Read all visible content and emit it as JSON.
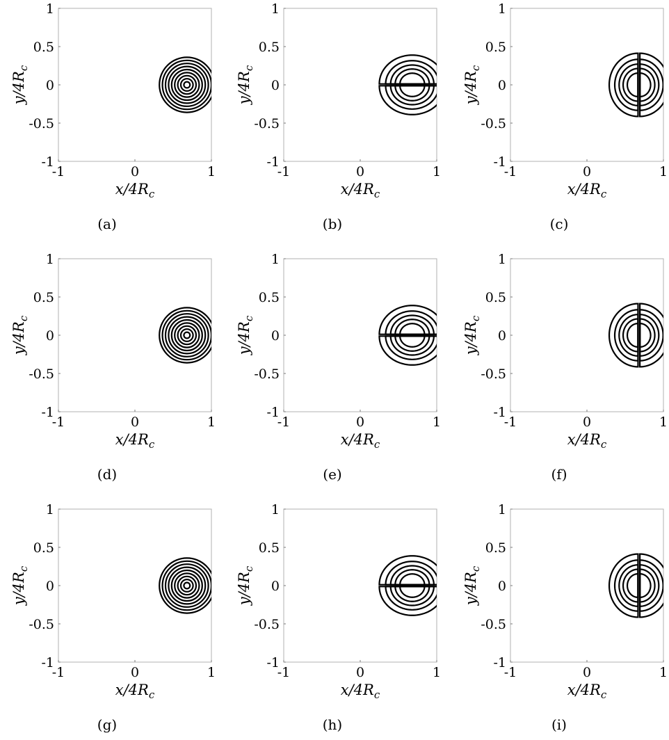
{
  "chart_data": [
    {
      "type": "contour",
      "panel_label": "(a)",
      "pattern": "concentric-rings",
      "center": [
        0.68,
        0.0
      ],
      "levels": [
        0.04,
        0.08,
        0.12,
        0.16,
        0.2,
        0.24,
        0.28,
        0.32,
        0.36
      ],
      "xlabel": "x/4R_c",
      "ylabel": "y/4R_c",
      "xlim": [
        -1,
        1
      ],
      "ylim": [
        -1,
        1
      ],
      "xticks": [
        "-1",
        "0",
        "1"
      ],
      "yticks": [
        "-1",
        "-0.5",
        "0",
        "0.5",
        "1"
      ],
      "grid": false,
      "line_color": "#000000"
    },
    {
      "type": "contour",
      "panel_label": "(b)",
      "pattern": "dipole-vertical",
      "center": [
        0.68,
        0.0
      ],
      "lobe_centers": [
        [
          0.68,
          0.24
        ],
        [
          0.68,
          -0.24
        ]
      ],
      "levels": [
        0.2,
        0.35,
        0.5,
        0.65,
        0.8
      ],
      "xlabel": "x/4R_c",
      "ylabel": "y/4R_c",
      "xlim": [
        -1,
        1
      ],
      "ylim": [
        -1,
        1
      ],
      "xticks": [
        "-1",
        "0",
        "1"
      ],
      "yticks": [
        "-1",
        "-0.5",
        "0",
        "0.5",
        "1"
      ],
      "grid": false,
      "line_color": "#000000"
    },
    {
      "type": "contour",
      "panel_label": "(c)",
      "pattern": "dipole-horizontal",
      "center": [
        0.68,
        0.0
      ],
      "lobe_centers": [
        [
          0.44,
          0.0
        ],
        [
          0.94,
          0.0
        ]
      ],
      "levels": [
        0.2,
        0.35,
        0.5,
        0.65,
        0.8
      ],
      "xlabel": "x/4R_c",
      "ylabel": "y/4R_c",
      "xlim": [
        -1,
        1
      ],
      "ylim": [
        -1,
        1
      ],
      "xticks": [
        "-1",
        "0",
        "1"
      ],
      "yticks": [
        "-1",
        "-0.5",
        "0",
        "0.5",
        "1"
      ],
      "grid": false,
      "line_color": "#000000"
    },
    {
      "type": "contour",
      "panel_label": "(d)",
      "pattern": "concentric-rings",
      "center": [
        0.68,
        0.0
      ],
      "levels": [
        0.04,
        0.08,
        0.12,
        0.16,
        0.2,
        0.24,
        0.28,
        0.32,
        0.36
      ],
      "xlabel": "x/4R_c",
      "ylabel": "y/4R_c",
      "xlim": [
        -1,
        1
      ],
      "ylim": [
        -1,
        1
      ],
      "xticks": [
        "-1",
        "0",
        "1"
      ],
      "yticks": [
        "-1",
        "-0.5",
        "0",
        "0.5",
        "1"
      ],
      "grid": false,
      "line_color": "#000000"
    },
    {
      "type": "contour",
      "panel_label": "(e)",
      "pattern": "dipole-vertical",
      "center": [
        0.68,
        0.0
      ],
      "lobe_centers": [
        [
          0.68,
          0.24
        ],
        [
          0.68,
          -0.24
        ]
      ],
      "levels": [
        0.2,
        0.35,
        0.5,
        0.65,
        0.8
      ],
      "xlabel": "x/4R_c",
      "ylabel": "y/4R_c",
      "xlim": [
        -1,
        1
      ],
      "ylim": [
        -1,
        1
      ],
      "xticks": [
        "-1",
        "0",
        "1"
      ],
      "yticks": [
        "-1",
        "-0.5",
        "0",
        "0.5",
        "1"
      ],
      "grid": false,
      "line_color": "#000000"
    },
    {
      "type": "contour",
      "panel_label": "(f)",
      "pattern": "dipole-horizontal",
      "center": [
        0.68,
        0.0
      ],
      "lobe_centers": [
        [
          0.44,
          0.0
        ],
        [
          0.94,
          0.0
        ]
      ],
      "levels": [
        0.2,
        0.35,
        0.5,
        0.65,
        0.8
      ],
      "xlabel": "x/4R_c",
      "ylabel": "y/4R_c",
      "xlim": [
        -1,
        1
      ],
      "ylim": [
        -1,
        1
      ],
      "xticks": [
        "-1",
        "0",
        "1"
      ],
      "yticks": [
        "-1",
        "-0.5",
        "0",
        "0.5",
        "1"
      ],
      "grid": false,
      "line_color": "#000000"
    },
    {
      "type": "contour",
      "panel_label": "(g)",
      "pattern": "concentric-rings",
      "center": [
        0.68,
        0.0
      ],
      "levels": [
        0.04,
        0.08,
        0.12,
        0.16,
        0.2,
        0.24,
        0.28,
        0.32,
        0.36
      ],
      "xlabel": "x/4R_c",
      "ylabel": "y/4R_c",
      "xlim": [
        -1,
        1
      ],
      "ylim": [
        -1,
        1
      ],
      "xticks": [
        "-1",
        "0",
        "1"
      ],
      "yticks": [
        "-1",
        "-0.5",
        "0",
        "0.5",
        "1"
      ],
      "grid": false,
      "line_color": "#000000"
    },
    {
      "type": "contour",
      "panel_label": "(h)",
      "pattern": "dipole-vertical",
      "center": [
        0.68,
        0.0
      ],
      "lobe_centers": [
        [
          0.68,
          0.24
        ],
        [
          0.68,
          -0.24
        ]
      ],
      "levels": [
        0.2,
        0.35,
        0.5,
        0.65,
        0.8
      ],
      "xlabel": "x/4R_c",
      "ylabel": "y/4R_c",
      "xlim": [
        -1,
        1
      ],
      "ylim": [
        -1,
        1
      ],
      "xticks": [
        "-1",
        "0",
        "1"
      ],
      "yticks": [
        "-1",
        "-0.5",
        "0",
        "0.5",
        "1"
      ],
      "grid": false,
      "line_color": "#000000"
    },
    {
      "type": "contour",
      "panel_label": "(i)",
      "pattern": "dipole-horizontal",
      "center": [
        0.68,
        0.0
      ],
      "lobe_centers": [
        [
          0.44,
          0.0
        ],
        [
          0.94,
          0.0
        ]
      ],
      "levels": [
        0.2,
        0.35,
        0.5,
        0.65,
        0.8
      ],
      "xlabel": "x/4R_c",
      "ylabel": "y/4R_c",
      "xlim": [
        -1,
        1
      ],
      "ylim": [
        -1,
        1
      ],
      "xticks": [
        "-1",
        "0",
        "1"
      ],
      "yticks": [
        "-1",
        "-0.5",
        "0",
        "0.5",
        "1"
      ],
      "grid": false,
      "line_color": "#000000"
    }
  ]
}
